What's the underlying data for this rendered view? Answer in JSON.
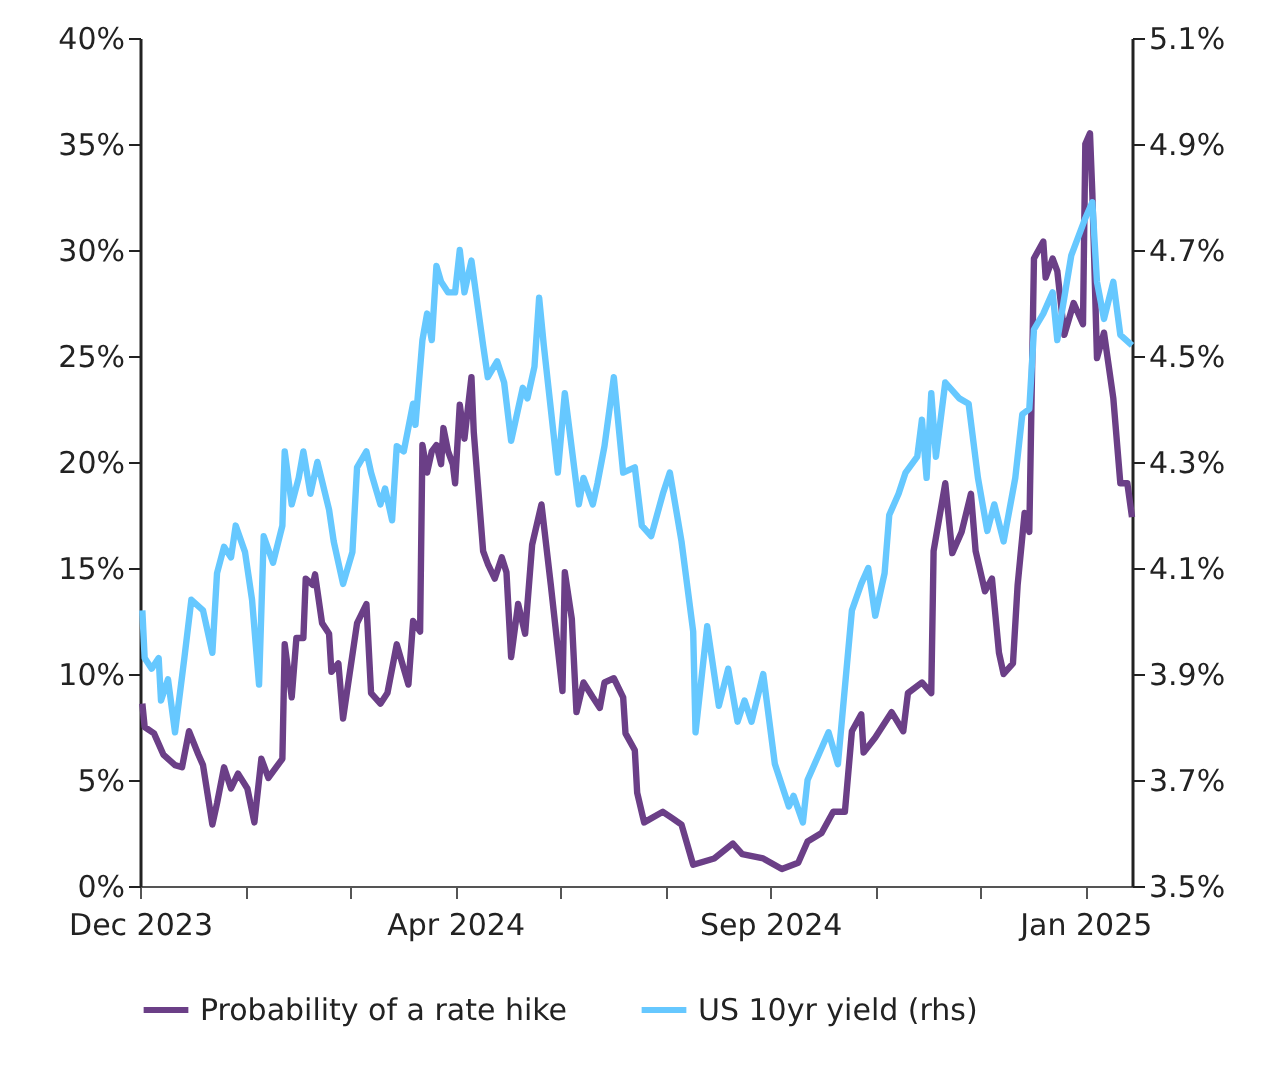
{
  "chart_data": {
    "type": "line",
    "xlim": [
      "2023-12-11",
      "2025-02-08"
    ],
    "xticks": [
      {
        "value": "2023-12-11",
        "label": "Dec 2023"
      },
      {
        "value": "2024-01-25",
        "label": null
      },
      {
        "value": "2024-03-10",
        "label": null
      },
      {
        "value": "2024-04-24",
        "label": "Apr 2024"
      },
      {
        "value": "2024-06-08",
        "label": null
      },
      {
        "value": "2024-07-23",
        "label": null
      },
      {
        "value": "2024-09-06",
        "label": "Sep 2024"
      },
      {
        "value": "2024-10-21",
        "label": null
      },
      {
        "value": "2024-12-05",
        "label": null
      },
      {
        "value": "2025-01-19",
        "label": "Jan 2025"
      }
    ],
    "ylim": [
      0,
      40
    ],
    "yticks": [
      {
        "value": 0,
        "label": "0%"
      },
      {
        "value": 5,
        "label": "5%"
      },
      {
        "value": 10,
        "label": "10%"
      },
      {
        "value": 15,
        "label": "15%"
      },
      {
        "value": 20,
        "label": "20%"
      },
      {
        "value": 25,
        "label": "25%"
      },
      {
        "value": 30,
        "label": "30%"
      },
      {
        "value": 35,
        "label": "35%"
      },
      {
        "value": 40,
        "label": "40%"
      }
    ],
    "y2lim": [
      3.5,
      5.1
    ],
    "y2ticks": [
      {
        "value": 3.5,
        "label": "3.5%"
      },
      {
        "value": 3.7,
        "label": "3.7%"
      },
      {
        "value": 3.9,
        "label": "3.9%"
      },
      {
        "value": 4.1,
        "label": "4.1%"
      },
      {
        "value": 4.3,
        "label": "4.3%"
      },
      {
        "value": 4.5,
        "label": "4.5%"
      },
      {
        "value": 4.7,
        "label": "4.7%"
      },
      {
        "value": 4.9,
        "label": "4.9%"
      },
      {
        "value": 5.1,
        "label": "5.1%"
      }
    ],
    "grid": false,
    "legend": "bottom",
    "marker": "none",
    "line_style": "solid",
    "series": [
      {
        "name": "Probability of a rate hike",
        "color": "#6b3f87",
        "x": [
          "2023-12-12",
          "2023-12-13",
          "2023-12-17",
          "2023-12-21",
          "2023-12-26",
          "2023-12-29",
          "2024-01-01",
          "2024-01-05",
          "2024-01-07",
          "2024-01-11",
          "2024-01-13",
          "2024-01-16",
          "2024-01-19",
          "2024-01-22",
          "2024-01-26",
          "2024-01-29",
          "2024-02-01",
          "2024-02-04",
          "2024-02-10",
          "2024-02-11",
          "2024-02-14",
          "2024-02-16",
          "2024-02-19",
          "2024-02-20",
          "2024-02-23",
          "2024-02-24",
          "2024-02-27",
          "2024-03-01",
          "2024-03-02",
          "2024-03-05",
          "2024-03-07",
          "2024-03-13",
          "2024-03-17",
          "2024-03-19",
          "2024-03-23",
          "2024-03-26",
          "2024-03-30",
          "2024-04-04",
          "2024-04-06",
          "2024-04-09",
          "2024-04-10",
          "2024-04-12",
          "2024-04-14",
          "2024-04-16",
          "2024-04-18",
          "2024-04-19",
          "2024-04-21",
          "2024-04-23",
          "2024-04-24",
          "2024-04-26",
          "2024-04-28",
          "2024-05-01",
          "2024-05-02",
          "2024-05-06",
          "2024-05-08",
          "2024-05-11",
          "2024-05-14",
          "2024-05-16",
          "2024-05-18",
          "2024-05-21",
          "2024-05-24",
          "2024-05-27",
          "2024-05-31",
          "2024-06-04",
          "2024-06-09",
          "2024-06-10",
          "2024-06-13",
          "2024-06-15",
          "2024-06-18",
          "2024-06-22",
          "2024-06-25",
          "2024-06-27",
          "2024-07-01",
          "2024-07-05",
          "2024-07-06",
          "2024-07-10",
          "2024-07-11",
          "2024-07-14",
          "2024-07-22",
          "2024-07-26",
          "2024-07-30",
          "2024-08-04",
          "2024-08-13",
          "2024-08-21",
          "2024-08-25",
          "2024-09-03",
          "2024-09-11",
          "2024-09-18",
          "2024-09-22",
          "2024-09-28",
          "2024-10-03",
          "2024-10-08",
          "2024-10-11",
          "2024-10-15",
          "2024-10-16",
          "2024-10-21",
          "2024-10-28",
          "2024-11-02",
          "2024-11-04",
          "2024-11-10",
          "2024-11-14",
          "2024-11-15",
          "2024-11-20",
          "2024-11-23",
          "2024-11-27",
          "2024-12-01",
          "2024-12-03",
          "2024-12-07",
          "2024-12-10",
          "2024-12-13",
          "2024-12-15",
          "2024-12-19",
          "2024-12-21",
          "2024-12-24",
          "2024-12-26",
          "2024-12-28",
          "2025-01-01",
          "2025-01-02",
          "2025-01-05",
          "2025-01-07",
          "2025-01-10",
          "2025-01-14",
          "2025-01-18",
          "2025-01-19",
          "2025-01-21",
          "2025-01-22",
          "2025-01-24",
          "2025-01-27",
          "2025-01-31",
          "2025-02-03",
          "2025-02-06",
          "2025-02-08"
        ],
        "values": [
          8.6,
          7.5,
          7.2,
          6.2,
          5.7,
          5.6,
          7.3,
          6.2,
          5.7,
          2.9,
          3.9,
          5.6,
          4.6,
          5.3,
          4.6,
          3.0,
          6.0,
          5.1,
          6.0,
          11.4,
          8.9,
          11.7,
          11.7,
          14.5,
          14.2,
          14.7,
          12.4,
          11.9,
          10.1,
          10.5,
          7.9,
          12.4,
          13.3,
          9.1,
          8.6,
          9.1,
          11.4,
          9.5,
          12.5,
          12.0,
          20.8,
          19.5,
          20.5,
          20.8,
          19.9,
          21.6,
          20.5,
          19.9,
          19.0,
          22.7,
          21.1,
          24.0,
          21.4,
          15.8,
          15.2,
          14.5,
          15.5,
          14.8,
          10.8,
          13.3,
          11.9,
          16.1,
          18.0,
          14.2,
          9.2,
          14.8,
          12.6,
          8.2,
          9.6,
          8.9,
          8.4,
          9.6,
          9.8,
          8.9,
          7.2,
          6.4,
          4.4,
          3.0,
          3.5,
          3.2,
          2.9,
          1.0,
          1.3,
          2.0,
          1.5,
          1.3,
          0.8,
          1.1,
          2.1,
          2.5,
          3.5,
          3.5,
          7.3,
          8.1,
          6.3,
          7.0,
          8.2,
          7.3,
          9.1,
          9.6,
          9.1,
          15.8,
          19.0,
          15.7,
          16.7,
          18.5,
          15.8,
          13.9,
          14.5,
          11.0,
          10.0,
          10.5,
          14.2,
          17.6,
          16.7,
          29.6,
          30.4,
          28.7,
          29.6,
          29.0,
          26.0,
          27.5,
          26.5,
          35.0,
          35.5,
          32.7,
          24.9,
          26.1,
          23.0,
          19.0,
          19.0,
          17.4
        ]
      },
      {
        "name": "US 10yr yield (rhs)",
        "color": "#66c8ff",
        "axis": "y2",
        "x": [
          "2023-12-12",
          "2023-12-13",
          "2023-12-16",
          "2023-12-19",
          "2023-12-20",
          "2023-12-23",
          "2023-12-26",
          "2023-12-30",
          "2024-01-02",
          "2024-01-07",
          "2024-01-11",
          "2024-01-13",
          "2024-01-16",
          "2024-01-19",
          "2024-01-21",
          "2024-01-25",
          "2024-01-28",
          "2024-01-31",
          "2024-02-02",
          "2024-02-06",
          "2024-02-10",
          "2024-02-11",
          "2024-02-14",
          "2024-02-17",
          "2024-02-19",
          "2024-02-22",
          "2024-02-25",
          "2024-03-01",
          "2024-03-03",
          "2024-03-07",
          "2024-03-11",
          "2024-03-13",
          "2024-03-17",
          "2024-03-19",
          "2024-03-23",
          "2024-03-25",
          "2024-03-28",
          "2024-03-30",
          "2024-04-02",
          "2024-04-06",
          "2024-04-07",
          "2024-04-10",
          "2024-04-12",
          "2024-04-14",
          "2024-04-16",
          "2024-04-18",
          "2024-04-21",
          "2024-04-24",
          "2024-04-26",
          "2024-04-28",
          "2024-05-01",
          "2024-05-06",
          "2024-05-08",
          "2024-05-12",
          "2024-05-15",
          "2024-05-18",
          "2024-05-23",
          "2024-05-25",
          "2024-05-28",
          "2024-05-30",
          "2024-06-01",
          "2024-06-05",
          "2024-06-07",
          "2024-06-10",
          "2024-06-16",
          "2024-06-18",
          "2024-06-22",
          "2024-06-24",
          "2024-06-27",
          "2024-07-01",
          "2024-07-05",
          "2024-07-10",
          "2024-07-13",
          "2024-07-17",
          "2024-07-22",
          "2024-07-25",
          "2024-07-30",
          "2024-08-04",
          "2024-08-05",
          "2024-08-10",
          "2024-08-15",
          "2024-08-19",
          "2024-08-23",
          "2024-08-26",
          "2024-08-29",
          "2024-09-03",
          "2024-09-08",
          "2024-09-14",
          "2024-09-16",
          "2024-09-20",
          "2024-09-22",
          "2024-09-27",
          "2024-10-01",
          "2024-10-05",
          "2024-10-11",
          "2024-10-15",
          "2024-10-18",
          "2024-10-21",
          "2024-10-25",
          "2024-10-27",
          "2024-10-31",
          "2024-11-03",
          "2024-11-08",
          "2024-11-10",
          "2024-11-12",
          "2024-11-14",
          "2024-11-16",
          "2024-11-20",
          "2024-11-26",
          "2024-11-30",
          "2024-12-04",
          "2024-12-08",
          "2024-12-11",
          "2024-12-15",
          "2024-12-20",
          "2024-12-23",
          "2024-12-26",
          "2024-12-28",
          "2025-01-01",
          "2025-01-05",
          "2025-01-07",
          "2025-01-13",
          "2025-01-19",
          "2025-01-22",
          "2025-01-24",
          "2025-01-27",
          "2025-01-31",
          "2025-02-03",
          "2025-02-08"
        ],
        "values": [
          4.02,
          3.93,
          3.91,
          3.93,
          3.85,
          3.89,
          3.79,
          3.93,
          4.04,
          4.02,
          3.94,
          4.09,
          4.14,
          4.12,
          4.18,
          4.13,
          4.04,
          3.88,
          4.16,
          4.11,
          4.18,
          4.32,
          4.22,
          4.27,
          4.32,
          4.24,
          4.3,
          4.21,
          4.15,
          4.07,
          4.13,
          4.29,
          4.32,
          4.28,
          4.22,
          4.25,
          4.19,
          4.33,
          4.32,
          4.41,
          4.37,
          4.53,
          4.58,
          4.53,
          4.67,
          4.64,
          4.62,
          4.62,
          4.7,
          4.62,
          4.68,
          4.52,
          4.46,
          4.49,
          4.45,
          4.34,
          4.44,
          4.42,
          4.48,
          4.61,
          4.52,
          4.36,
          4.28,
          4.43,
          4.22,
          4.27,
          4.22,
          4.26,
          4.33,
          4.46,
          4.28,
          4.29,
          4.18,
          4.16,
          4.24,
          4.28,
          4.15,
          3.98,
          3.79,
          3.99,
          3.84,
          3.91,
          3.81,
          3.85,
          3.81,
          3.9,
          3.73,
          3.65,
          3.67,
          3.62,
          3.7,
          3.75,
          3.79,
          3.73,
          4.02,
          4.07,
          4.1,
          4.01,
          4.09,
          4.2,
          4.24,
          4.28,
          4.31,
          4.38,
          4.27,
          4.43,
          4.31,
          4.45,
          4.42,
          4.41,
          4.27,
          4.17,
          4.22,
          4.15,
          4.27,
          4.39,
          4.4,
          4.55,
          4.58,
          4.62,
          4.53,
          4.69,
          4.76,
          4.79,
          4.64,
          4.57,
          4.64,
          4.54,
          4.52
        ]
      }
    ]
  }
}
